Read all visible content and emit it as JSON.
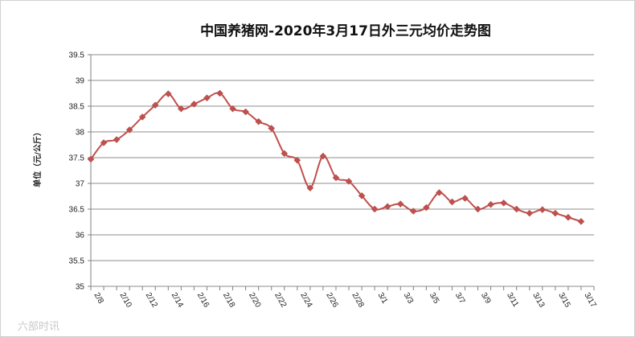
{
  "chart_data": {
    "type": "line",
    "title": "中国养猪网-2020年3月17日外三元均价走势图",
    "xlabel": "",
    "ylabel": "单位（元/公斤）",
    "ylim": [
      35,
      39.5
    ],
    "y_ticks": [
      "35",
      "35.5",
      "36",
      "36.5",
      "37",
      "37.5",
      "38",
      "38.5",
      "39",
      "39.5"
    ],
    "x_tick_labels": [
      "2/8",
      "2/10",
      "2/12",
      "2/14",
      "2/16",
      "2/18",
      "2/20",
      "2/22",
      "2/24",
      "2/26",
      "2/28",
      "3/1",
      "3/3",
      "3/5",
      "3/7",
      "3/9",
      "3/11",
      "3/13",
      "3/15",
      "3/17"
    ],
    "x": [
      "2/8",
      "2/9",
      "2/10",
      "2/11",
      "2/12",
      "2/13",
      "2/14",
      "2/15",
      "2/16",
      "2/17",
      "2/18",
      "2/19",
      "2/20",
      "2/21",
      "2/22",
      "2/23",
      "2/24",
      "2/25",
      "2/26",
      "2/27",
      "2/28",
      "2/29",
      "3/1",
      "3/2",
      "3/3",
      "3/4",
      "3/5",
      "3/6",
      "3/7",
      "3/8",
      "3/9",
      "3/10",
      "3/11",
      "3/12",
      "3/13",
      "3/14",
      "3/15",
      "3/16",
      "3/17"
    ],
    "series": [
      {
        "color": "#c0504d",
        "values": [
          37.47,
          37.79,
          37.85,
          38.04,
          38.29,
          38.52,
          38.74,
          38.45,
          38.54,
          38.66,
          38.75,
          38.45,
          38.39,
          38.2,
          38.07,
          37.58,
          37.45,
          36.91,
          37.53,
          37.11,
          37.04,
          36.76,
          36.5,
          36.55,
          36.6,
          36.46,
          36.53,
          36.82,
          36.64,
          36.71,
          36.5,
          36.59,
          36.62,
          36.5,
          36.42,
          36.49,
          36.42,
          36.34,
          36.26
        ]
      }
    ],
    "grid": true,
    "legend": "none"
  },
  "watermark": "六部时讯"
}
